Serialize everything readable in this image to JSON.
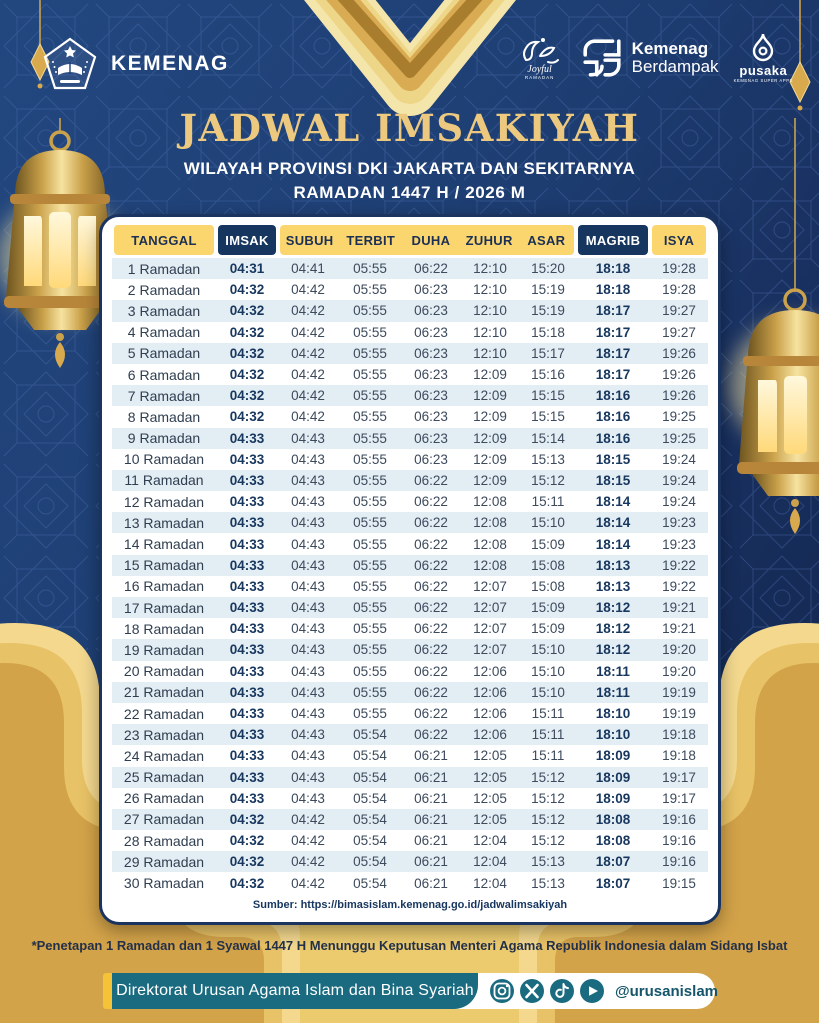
{
  "poster": {
    "brand": {
      "kemenag": "KEMENAG",
      "joyful_line1": "Joyful",
      "joyful_line2": "RAMADAN",
      "berdampak_line1": "Kemenag",
      "berdampak_line2": "Berdampak",
      "pusaka": "pusaka",
      "pusaka_tagline": "KEMENAG SUPER APPS"
    },
    "title": "JADWAL IMSAKIYAH",
    "subtitle_region": "WILAYAH PROVINSI DKI JAKARTA DAN SEKITARNYA",
    "subtitle_period": "RAMADAN 1447 H / 2026 M",
    "table": {
      "columns": [
        "TANGGAL",
        "IMSAK",
        "SUBUH",
        "TERBIT",
        "DUHA",
        "ZUHUR",
        "ASAR",
        "MAGRIB",
        "ISYA"
      ],
      "highlight_columns": [
        "IMSAK",
        "MAGRIB"
      ],
      "rows": [
        [
          "1 Ramadan",
          "04:31",
          "04:41",
          "05:55",
          "06:22",
          "12:10",
          "15:20",
          "18:18",
          "19:28"
        ],
        [
          "2 Ramadan",
          "04:32",
          "04:42",
          "05:55",
          "06:23",
          "12:10",
          "15:19",
          "18:18",
          "19:28"
        ],
        [
          "3 Ramadan",
          "04:32",
          "04:42",
          "05:55",
          "06:23",
          "12:10",
          "15:19",
          "18:17",
          "19:27"
        ],
        [
          "4 Ramadan",
          "04:32",
          "04:42",
          "05:55",
          "06:23",
          "12:10",
          "15:18",
          "18:17",
          "19:27"
        ],
        [
          "5 Ramadan",
          "04:32",
          "04:42",
          "05:55",
          "06:23",
          "12:10",
          "15:17",
          "18:17",
          "19:26"
        ],
        [
          "6 Ramadan",
          "04:32",
          "04:42",
          "05:55",
          "06:23",
          "12:09",
          "15:16",
          "18:17",
          "19:26"
        ],
        [
          "7 Ramadan",
          "04:32",
          "04:42",
          "05:55",
          "06:23",
          "12:09",
          "15:15",
          "18:16",
          "19:26"
        ],
        [
          "8 Ramadan",
          "04:32",
          "04:42",
          "05:55",
          "06:23",
          "12:09",
          "15:15",
          "18:16",
          "19:25"
        ],
        [
          "9 Ramadan",
          "04:33",
          "04:43",
          "05:55",
          "06:23",
          "12:09",
          "15:14",
          "18:16",
          "19:25"
        ],
        [
          "10 Ramadan",
          "04:33",
          "04:43",
          "05:55",
          "06:23",
          "12:09",
          "15:13",
          "18:15",
          "19:24"
        ],
        [
          "11 Ramadan",
          "04:33",
          "04:43",
          "05:55",
          "06:22",
          "12:09",
          "15:12",
          "18:15",
          "19:24"
        ],
        [
          "12 Ramadan",
          "04:33",
          "04:43",
          "05:55",
          "06:22",
          "12:08",
          "15:11",
          "18:14",
          "19:24"
        ],
        [
          "13 Ramadan",
          "04:33",
          "04:43",
          "05:55",
          "06:22",
          "12:08",
          "15:10",
          "18:14",
          "19:23"
        ],
        [
          "14 Ramadan",
          "04:33",
          "04:43",
          "05:55",
          "06:22",
          "12:08",
          "15:09",
          "18:14",
          "19:23"
        ],
        [
          "15 Ramadan",
          "04:33",
          "04:43",
          "05:55",
          "06:22",
          "12:08",
          "15:08",
          "18:13",
          "19:22"
        ],
        [
          "16 Ramadan",
          "04:33",
          "04:43",
          "05:55",
          "06:22",
          "12:07",
          "15:08",
          "18:13",
          "19:22"
        ],
        [
          "17 Ramadan",
          "04:33",
          "04:43",
          "05:55",
          "06:22",
          "12:07",
          "15:09",
          "18:12",
          "19:21"
        ],
        [
          "18 Ramadan",
          "04:33",
          "04:43",
          "05:55",
          "06:22",
          "12:07",
          "15:09",
          "18:12",
          "19:21"
        ],
        [
          "19 Ramadan",
          "04:33",
          "04:43",
          "05:55",
          "06:22",
          "12:07",
          "15:10",
          "18:12",
          "19:20"
        ],
        [
          "20 Ramadan",
          "04:33",
          "04:43",
          "05:55",
          "06:22",
          "12:06",
          "15:10",
          "18:11",
          "19:20"
        ],
        [
          "21 Ramadan",
          "04:33",
          "04:43",
          "05:55",
          "06:22",
          "12:06",
          "15:10",
          "18:11",
          "19:19"
        ],
        [
          "22 Ramadan",
          "04:33",
          "04:43",
          "05:55",
          "06:22",
          "12:06",
          "15:11",
          "18:10",
          "19:19"
        ],
        [
          "23 Ramadan",
          "04:33",
          "04:43",
          "05:54",
          "06:22",
          "12:06",
          "15:11",
          "18:10",
          "19:18"
        ],
        [
          "24 Ramadan",
          "04:33",
          "04:43",
          "05:54",
          "06:21",
          "12:05",
          "15:11",
          "18:09",
          "19:18"
        ],
        [
          "25 Ramadan",
          "04:33",
          "04:43",
          "05:54",
          "06:21",
          "12:05",
          "15:12",
          "18:09",
          "19:17"
        ],
        [
          "26 Ramadan",
          "04:33",
          "04:43",
          "05:54",
          "06:21",
          "12:05",
          "15:12",
          "18:09",
          "19:17"
        ],
        [
          "27 Ramadan",
          "04:32",
          "04:42",
          "05:54",
          "06:21",
          "12:05",
          "15:12",
          "18:08",
          "19:16"
        ],
        [
          "28 Ramadan",
          "04:32",
          "04:42",
          "05:54",
          "06:21",
          "12:04",
          "15:12",
          "18:08",
          "19:16"
        ],
        [
          "29 Ramadan",
          "04:32",
          "04:42",
          "05:54",
          "06:21",
          "12:04",
          "15:13",
          "18:07",
          "19:16"
        ],
        [
          "30 Ramadan",
          "04:32",
          "04:42",
          "05:54",
          "06:21",
          "12:04",
          "15:13",
          "18:07",
          "19:15"
        ]
      ]
    },
    "source": "Sumber: https://bimasislam.kemenag.go.id/jadwalimsakiyah",
    "note": "*Penetapan 1 Ramadan dan 1 Syawal 1447 H Menunggu Keputusan Menteri Agama Republik Indonesia dalam Sidang Isbat",
    "footer": {
      "department": "Direktorat Urusan Agama Islam dan Bina Syariah",
      "handle": "@urusanislam",
      "social_icons": [
        "instagram-icon",
        "x-icon",
        "tiktok-icon",
        "youtube-icon"
      ]
    },
    "colors": {
      "background_blue": "#1d3e78",
      "gold": "#e9c267",
      "header_gold": "#fbd66e",
      "header_navy": "#16365f",
      "row_alt": "#e3edf4",
      "teal": "#1a6b80",
      "title_gold": "#ecc97f"
    }
  }
}
